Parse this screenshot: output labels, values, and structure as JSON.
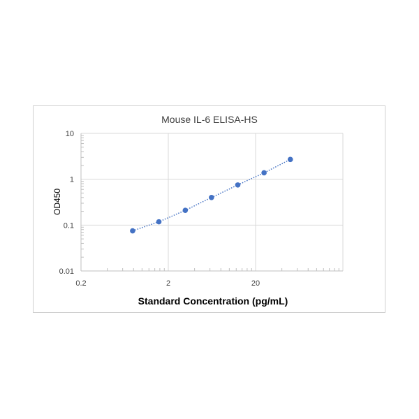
{
  "chart_data": {
    "type": "scatter",
    "title": "Mouse IL-6 ELISA-HS",
    "xlabel": "Standard Concentration (pg/mL)",
    "ylabel": "OD450",
    "x_scale": "log",
    "y_scale": "log",
    "xlim": [
      0.2,
      200
    ],
    "ylim": [
      0.01,
      10
    ],
    "x_ticks": [
      0.2,
      2,
      20
    ],
    "x_tick_labels": [
      "0.2",
      "2",
      "20"
    ],
    "y_ticks": [
      0.01,
      0.1,
      1,
      10
    ],
    "y_tick_labels": [
      "0.01",
      "0.1",
      "1",
      "10"
    ],
    "grid": true,
    "legend": "none",
    "series": [
      {
        "x": [
          0.78,
          1.56,
          3.13,
          6.25,
          12.5,
          25,
          50
        ],
        "y": [
          0.075,
          0.118,
          0.21,
          0.4,
          0.75,
          1.38,
          2.7
        ],
        "color": "#4472C4",
        "trendline": "dotted"
      }
    ]
  }
}
